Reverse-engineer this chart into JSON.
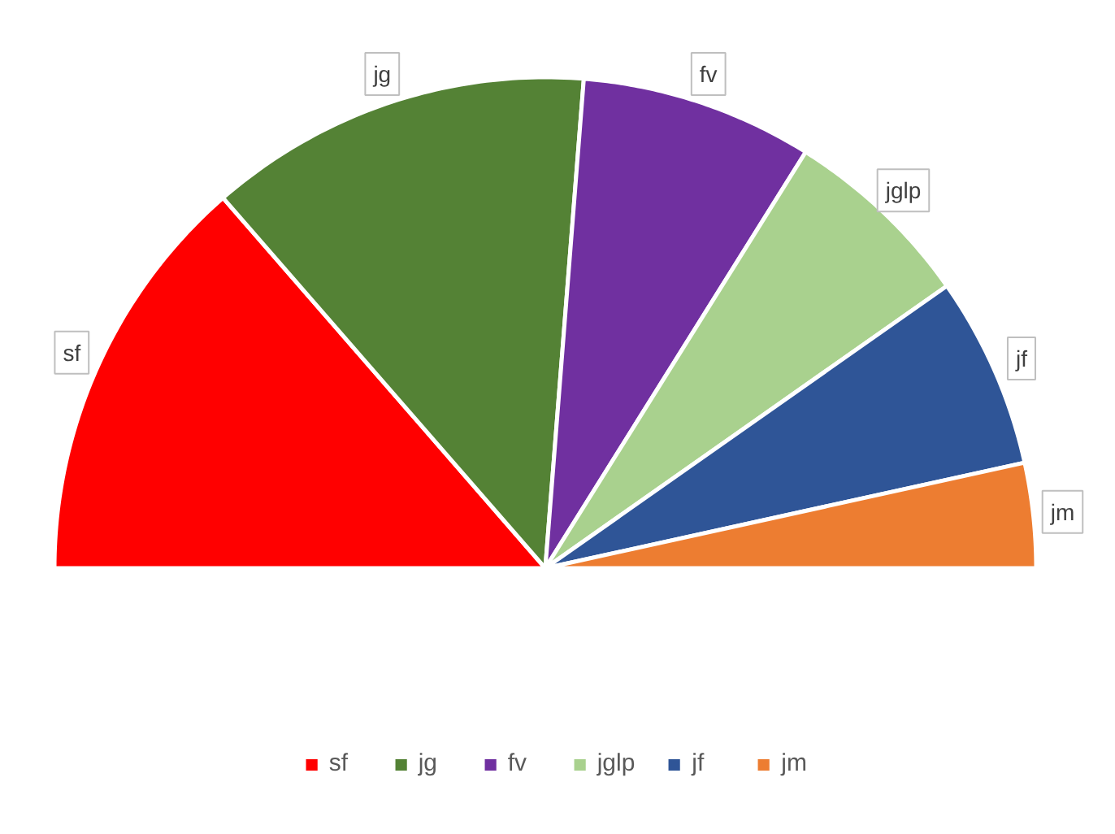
{
  "chart_data": {
    "type": "pie",
    "categories": [
      "sf",
      "jg",
      "fv",
      "jglp",
      "jf",
      "jm"
    ],
    "values": [
      27.2,
      25.3,
      15.3,
      12.7,
      12.6,
      6.9
    ],
    "colors": [
      "#ff0000",
      "#548235",
      "#7030a0",
      "#a9d18e",
      "#2f5597",
      "#ed7d31"
    ],
    "data_labels": "category",
    "legend": "bottom"
  }
}
